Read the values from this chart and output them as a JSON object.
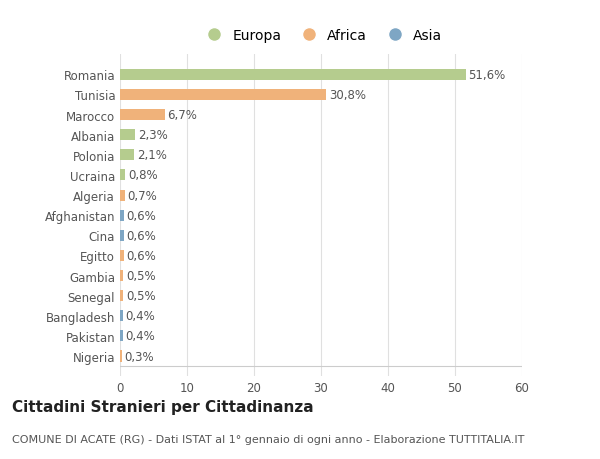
{
  "categories": [
    "Romania",
    "Tunisia",
    "Marocco",
    "Albania",
    "Polonia",
    "Ucraina",
    "Algeria",
    "Afghanistan",
    "Cina",
    "Egitto",
    "Gambia",
    "Senegal",
    "Bangladesh",
    "Pakistan",
    "Nigeria"
  ],
  "values": [
    51.6,
    30.8,
    6.7,
    2.3,
    2.1,
    0.8,
    0.7,
    0.6,
    0.6,
    0.6,
    0.5,
    0.5,
    0.4,
    0.4,
    0.3
  ],
  "labels": [
    "51,6%",
    "30,8%",
    "6,7%",
    "2,3%",
    "2,1%",
    "0,8%",
    "0,7%",
    "0,6%",
    "0,6%",
    "0,6%",
    "0,5%",
    "0,5%",
    "0,4%",
    "0,4%",
    "0,3%"
  ],
  "colors": [
    "#b5cc8e",
    "#f0b27a",
    "#f0b27a",
    "#b5cc8e",
    "#b5cc8e",
    "#b5cc8e",
    "#f0b27a",
    "#7ea6c4",
    "#7ea6c4",
    "#f0b27a",
    "#f0b27a",
    "#f0b27a",
    "#7ea6c4",
    "#7ea6c4",
    "#f0b27a"
  ],
  "legend": [
    {
      "label": "Europa",
      "color": "#b5cc8e"
    },
    {
      "label": "Africa",
      "color": "#f0b27a"
    },
    {
      "label": "Asia",
      "color": "#7ea6c4"
    }
  ],
  "xlim": [
    0,
    60
  ],
  "xticks": [
    0,
    10,
    20,
    30,
    40,
    50,
    60
  ],
  "title": "Cittadini Stranieri per Cittadinanza",
  "subtitle": "COMUNE DI ACATE (RG) - Dati ISTAT al 1° gennaio di ogni anno - Elaborazione TUTTITALIA.IT",
  "bg_color": "#ffffff",
  "grid_color": "#e0e0e0",
  "bar_height": 0.55,
  "title_fontsize": 11,
  "subtitle_fontsize": 8,
  "label_fontsize": 8.5,
  "tick_fontsize": 8.5,
  "legend_fontsize": 10
}
